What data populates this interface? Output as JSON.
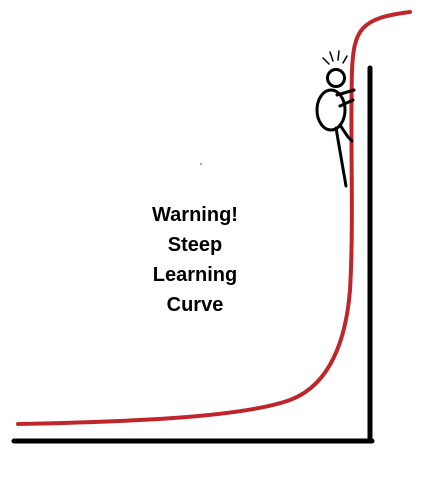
{
  "warning": {
    "lines": [
      "Warning!",
      "Steep",
      "Learning",
      "Curve"
    ]
  },
  "colors": {
    "background": "#ffffff",
    "axes": "#000000",
    "curve": "#c0252b",
    "figure": "#000000"
  },
  "figure": {
    "icon": "stick-figure-climbing-icon",
    "effect": "shock-lines-icon"
  }
}
